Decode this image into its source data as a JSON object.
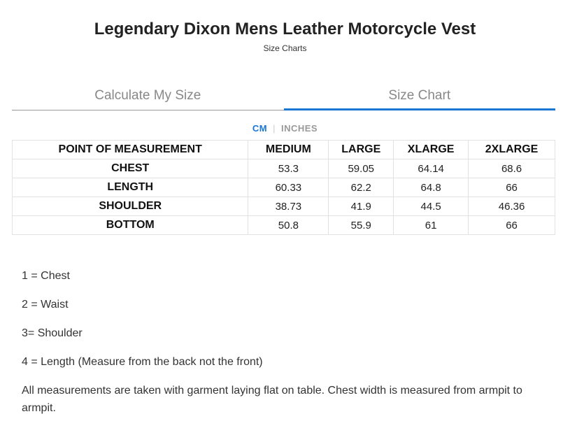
{
  "title": "Legendary Dixon Mens Leather Motorcycle Vest",
  "subtitle": "Size Charts",
  "tabs": [
    {
      "label": "Calculate My Size",
      "active": false
    },
    {
      "label": "Size Chart",
      "active": true
    }
  ],
  "units": {
    "cm": "CM",
    "inches": "INCHES",
    "selected": "CM"
  },
  "table": {
    "headers": [
      "POINT OF MEASUREMENT",
      "MEDIUM",
      "LARGE",
      "XLARGE",
      "2XLARGE"
    ],
    "rows": [
      [
        "CHEST",
        "53.3",
        "59.05",
        "64.14",
        "68.6"
      ],
      [
        "LENGTH",
        "60.33",
        "62.2",
        "64.8",
        "66"
      ],
      [
        "SHOULDER",
        "38.73",
        "41.9",
        "44.5",
        "46.36"
      ],
      [
        "BOTTOM",
        "50.8",
        "55.9",
        "61",
        "66"
      ]
    ]
  },
  "notes": [
    "1 = Chest",
    "2 = Waist",
    "3= Shoulder",
    "4 = Length (Measure from the back not the front)",
    "All measurements are taken with garment laying flat on table. Chest width is measured from armpit to armpit."
  ],
  "colors": {
    "accent": "#1976d2"
  }
}
